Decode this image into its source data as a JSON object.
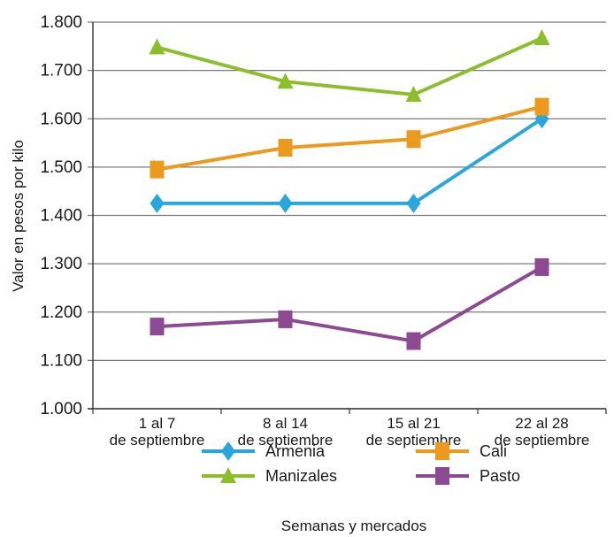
{
  "chart_data": {
    "type": "line",
    "categories": [
      [
        "1 al 7",
        "de septiembre"
      ],
      [
        "8 al 14",
        "de septiembre"
      ],
      [
        "15 al 21",
        "de septiembre"
      ],
      [
        "22 al 28",
        "de septiembre"
      ]
    ],
    "series": [
      {
        "name": "Armenia",
        "color": "#29a7dd",
        "marker": "diamond",
        "values": [
          1425,
          1425,
          1425,
          1600
        ]
      },
      {
        "name": "Cali",
        "color": "#ec9a1e",
        "marker": "square",
        "values": [
          1495,
          1540,
          1558,
          1625
        ]
      },
      {
        "name": "Manizales",
        "color": "#8cbe2c",
        "marker": "triangle",
        "values": [
          1748,
          1677,
          1650,
          1767
        ]
      },
      {
        "name": "Pasto",
        "color": "#8b4a92",
        "marker": "square",
        "values": [
          1170,
          1185,
          1140,
          1293
        ]
      }
    ],
    "title": "",
    "xlabel": "Semanas y mercados",
    "ylabel": "Valor en pesos por kilo",
    "ylim": [
      1000,
      1800
    ],
    "yticks": [
      "1.000",
      "1.100",
      "1.200",
      "1.300",
      "1.400",
      "1.500",
      "1.600",
      "1.700",
      "1.800"
    ],
    "grid": true,
    "legend_position": "bottom"
  }
}
